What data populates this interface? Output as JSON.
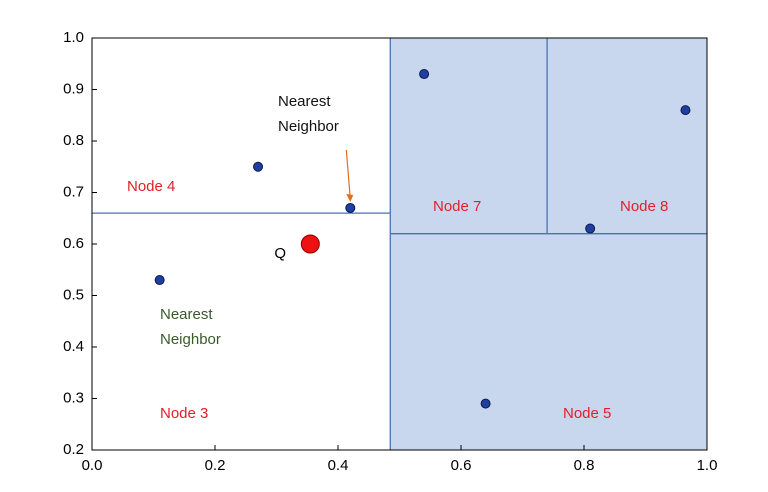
{
  "chart_data": {
    "type": "scatter",
    "xlim": [
      0,
      1
    ],
    "ylim": [
      0.2,
      1
    ],
    "xticks": [
      {
        "value": 0,
        "label": "0.0"
      },
      0.2,
      0.4,
      0.6,
      0.8,
      {
        "value": 1,
        "label": "1.0"
      }
    ],
    "yticks": [
      0.2,
      0.3,
      0.4,
      0.5,
      0.6,
      0.7,
      0.8,
      0.9,
      {
        "value": 1,
        "label": "1.0"
      }
    ],
    "points": {
      "x": [
        0.11,
        0.27,
        0.42,
        0.54,
        0.64,
        0.81,
        0.965
      ],
      "y": [
        0.53,
        0.75,
        0.67,
        0.93,
        0.29,
        0.63,
        0.86
      ],
      "color": "#1f3fa0"
    },
    "query": {
      "label": "Q",
      "x": 0.355,
      "y": 0.6,
      "color": "#ee1111"
    },
    "shaded_region": {
      "x": [
        0.485,
        1
      ],
      "y": [
        0.2,
        1
      ],
      "color": "#c9d7ee"
    },
    "split_lines": [
      {
        "x": [
          0,
          0.485
        ],
        "y": [
          0.66,
          0.66
        ]
      },
      {
        "x": [
          0.485,
          0.485
        ],
        "y": [
          0.2,
          1
        ]
      },
      {
        "x": [
          0.485,
          1
        ],
        "y": [
          0.62,
          0.62
        ]
      },
      {
        "x": [
          0.74,
          0.74
        ],
        "y": [
          0.62,
          1
        ]
      }
    ],
    "split_color": "#4a72b0",
    "annotations": [
      {
        "lines": [
          "Node 4"
        ],
        "color": "#e0202a"
      },
      {
        "lines": [
          "Node 3"
        ],
        "color": "#e0202a"
      },
      {
        "lines": [
          "Node 7"
        ],
        "color": "#e0202a"
      },
      {
        "lines": [
          "Node 8"
        ],
        "color": "#e0202a"
      },
      {
        "lines": [
          "Node 5"
        ],
        "color": "#e0202a"
      },
      {
        "lines": [
          "Nearest",
          "Neighbor"
        ],
        "color": "#111111"
      },
      {
        "lines": [
          "Nearest",
          "Neighbor"
        ],
        "color": "#3a5a2a"
      }
    ]
  }
}
